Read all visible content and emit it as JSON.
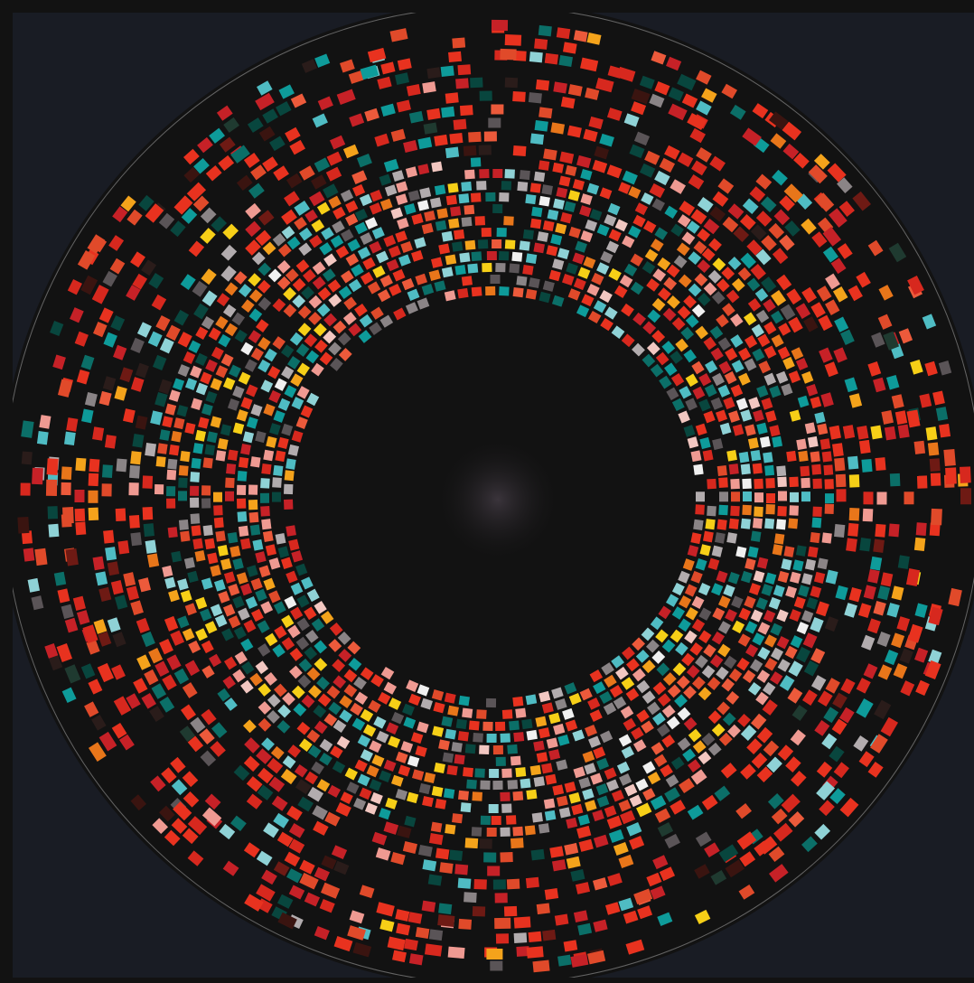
{
  "palette": {
    "page_background": "#121212",
    "panel_background": "#191c24",
    "disc_background": "#121212",
    "center_glow": "#3a3338",
    "rim_stroke": "#ffffff",
    "cells": [
      "#e8321f",
      "#e8321f",
      "#e8321f",
      "#d7281e",
      "#c62127",
      "#e04a2a",
      "#e8761a",
      "#f4a31b",
      "#f6cf17",
      "#ec5a3b",
      "#ef9a92",
      "#f2c7c1",
      "#f0f0f0",
      "#0e9b9a",
      "#4fbcc3",
      "#8fd2d6",
      "#0b6f68",
      "#08463e",
      "#5a5457",
      "#8a8486",
      "#b2acae",
      "#6e1a14",
      "#3a1410",
      "#2a1c1a",
      "#1f3a30"
    ],
    "ring_weights": {
      "inner": {
        "red": 0.34,
        "warm": 0.2,
        "teal": 0.26,
        "grey": 0.12,
        "pale": 0.08
      },
      "middle": {
        "red": 0.52,
        "warm": 0.12,
        "teal": 0.2,
        "grey": 0.06,
        "dark": 0.1
      },
      "outer": {
        "red": 0.74,
        "warm": 0.04,
        "teal": 0.04,
        "dark": 0.18
      }
    }
  }
}
